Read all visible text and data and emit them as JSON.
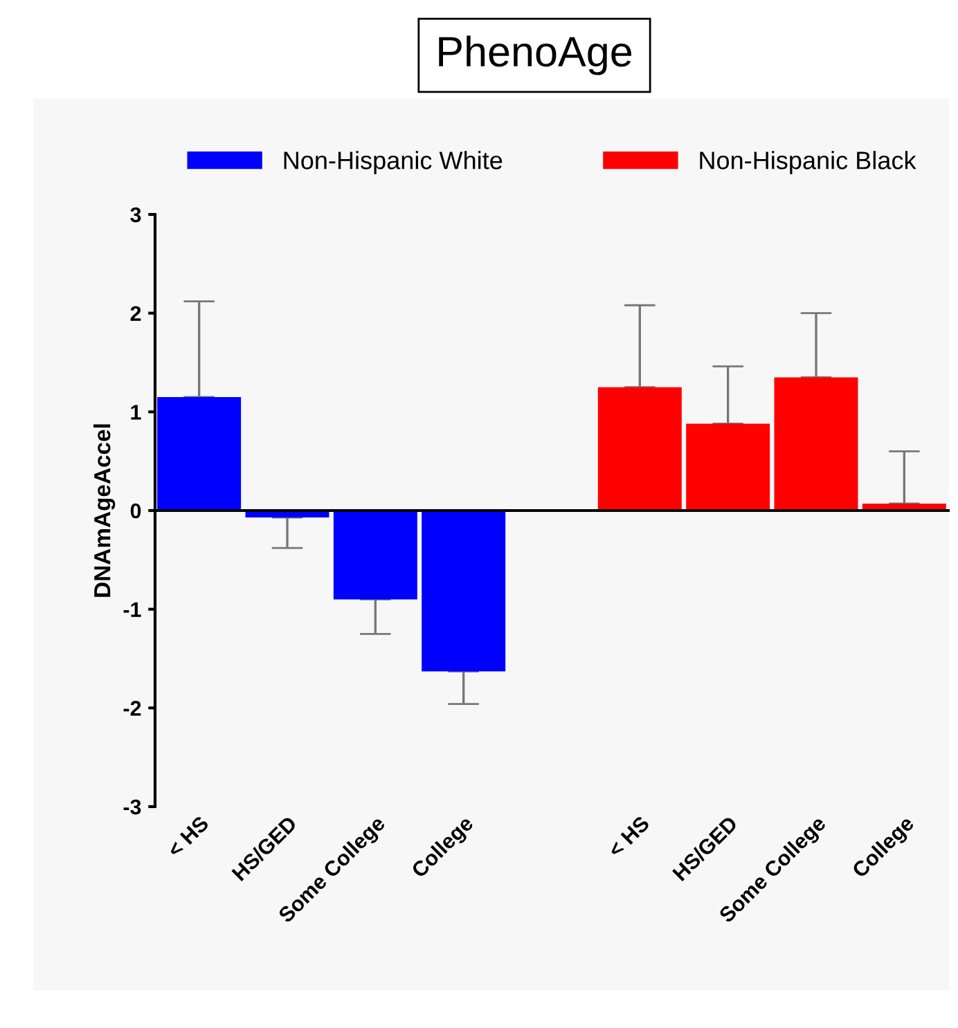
{
  "chart_data": {
    "type": "bar",
    "title": "PhenoAge",
    "ylabel": "DNAmAgeAccel",
    "categories": [
      "< HS",
      "HS/GED",
      "Some College",
      "College",
      null,
      "< HS",
      "HS/GED",
      "Some College",
      "College"
    ],
    "series": [
      {
        "name": "Non-Hispanic White",
        "color": "#0000ff",
        "values": [
          1.15,
          -0.07,
          -0.9,
          -1.63,
          null,
          null,
          null,
          null,
          null
        ],
        "errors": [
          [
            1.15,
            2.12
          ],
          [
            -0.38,
            -0.07
          ],
          [
            -1.25,
            -0.9
          ],
          [
            -1.96,
            -1.63
          ],
          null,
          null,
          null,
          null,
          null
        ]
      },
      {
        "name": "Non-Hispanic Black",
        "color": "#ff0000",
        "values": [
          null,
          null,
          null,
          null,
          null,
          1.25,
          0.88,
          1.35,
          0.07
        ],
        "errors": [
          null,
          null,
          null,
          null,
          null,
          [
            1.25,
            2.08
          ],
          [
            0.88,
            1.46
          ],
          [
            1.35,
            2.0
          ],
          [
            0.07,
            0.6
          ]
        ]
      }
    ],
    "ylim": [
      -3,
      3
    ],
    "yticks": [
      -3,
      -2,
      -1,
      0,
      1,
      2,
      3
    ],
    "legend": "top"
  }
}
